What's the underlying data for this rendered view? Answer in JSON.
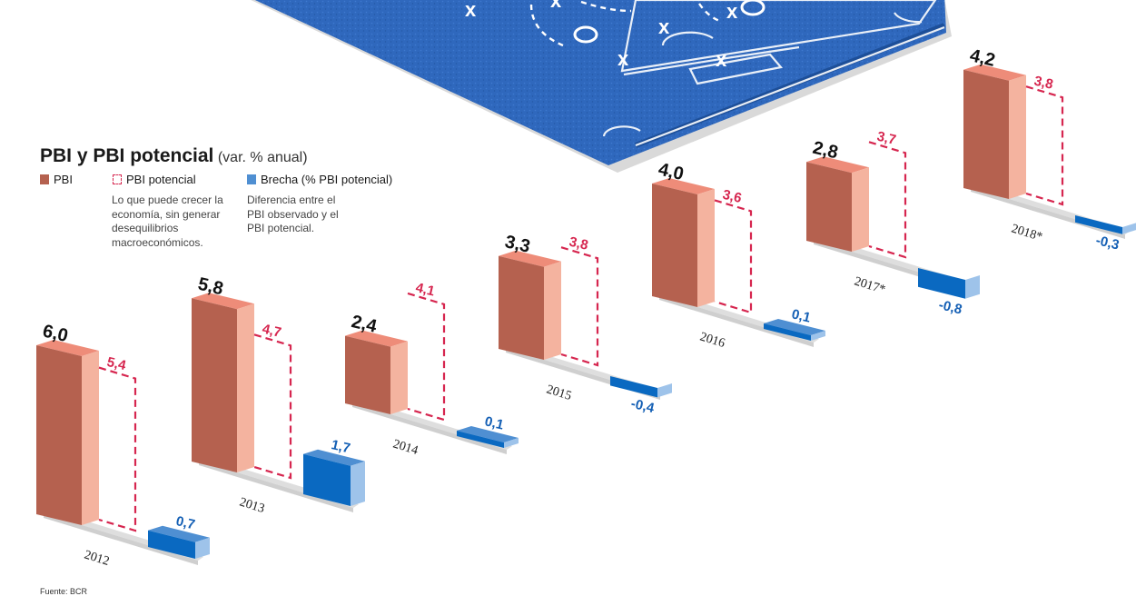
{
  "header": {
    "title": "PBI y PBI potencial",
    "subtitle": "(var. % anual)"
  },
  "legend": {
    "pbi": "PBI",
    "pbi_potencial": "PBI potencial",
    "brecha": "Brecha (% PBI potencial)",
    "pbi_potencial_note": "Lo que puede crecer la economía, sin generar desequilibrios macroeconómicos.",
    "brecha_note": "Diferencia entre el PBI observado y el PBI potencial."
  },
  "source": "Fuente: BCR",
  "colors": {
    "pbi_front": "#b5614f",
    "pbi_side": "#f4b39f",
    "pbi_top": "#ee8c79",
    "potencial": "#d6264f",
    "brecha_front": "#0a69c1",
    "brecha_side": "#9ec3ea",
    "brecha_top": "#4f8fd2",
    "base": "#cfcfcf",
    "pitch": "#2a64b8",
    "label_blue": "#1560b5"
  },
  "chart_data": {
    "type": "bar",
    "title": "PBI y PBI potencial",
    "subtitle": "(var. % anual)",
    "categories": [
      "2012",
      "2013",
      "2014",
      "2015",
      "2016",
      "2017*",
      "2018*"
    ],
    "series": [
      {
        "name": "PBI",
        "values": [
          6.0,
          5.8,
          2.4,
          3.3,
          4.0,
          2.8,
          4.2
        ],
        "labels": [
          "6,0",
          "5,8",
          "2,4",
          "3,3",
          "4,0",
          "2,8",
          "4,2"
        ]
      },
      {
        "name": "PBI potencial",
        "values": [
          5.4,
          4.7,
          4.1,
          3.8,
          3.6,
          3.7,
          3.8
        ],
        "labels": [
          "5,4",
          "4,7",
          "4,1",
          "3,8",
          "3,6",
          "3,7",
          "3,8"
        ]
      },
      {
        "name": "Brecha (% PBI potencial)",
        "values": [
          0.7,
          1.7,
          0.1,
          -0.4,
          0.1,
          -0.8,
          -0.3
        ],
        "labels": [
          "0,7",
          "1,7",
          "0,1",
          "-0,4",
          "0,1",
          "-0,8",
          "-0,3"
        ]
      }
    ],
    "xlabel": "",
    "ylabel": "",
    "grid": false,
    "legend_position": "top-left"
  }
}
